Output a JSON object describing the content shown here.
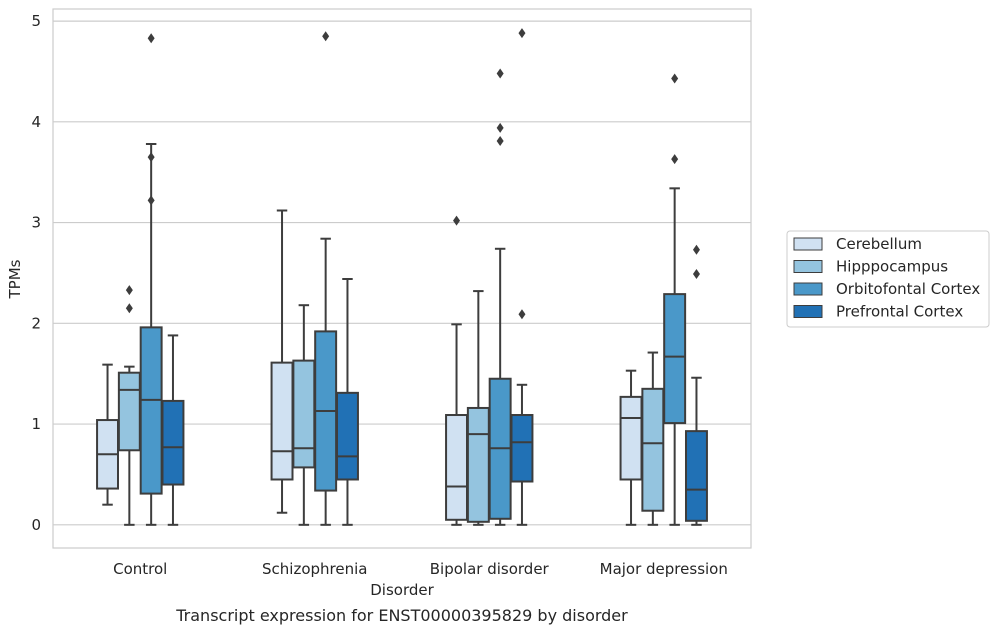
{
  "chart_data": {
    "type": "box",
    "title": "",
    "caption": "Transcript expression for ENST00000395829 by disorder",
    "xlabel": "Disorder",
    "ylabel": "TPMs",
    "ylim": [
      -0.23,
      5.12
    ],
    "yticks": [
      "0",
      "1",
      "2",
      "3",
      "4",
      "5"
    ],
    "ytick_values": [
      0,
      1,
      2,
      3,
      4,
      5
    ],
    "grid": "horizontal",
    "legend_placement": "right",
    "categories": [
      "Control",
      "Schizophrenia",
      "Bipolar disorder",
      "Major depression"
    ],
    "series": [
      {
        "name": "Cerebellum",
        "color": "#d0e1f2",
        "boxes": [
          {
            "whislo": 0.2,
            "q1": 0.36,
            "med": 0.7,
            "q3": 1.04,
            "whishi": 1.59,
            "fliers": []
          },
          {
            "whislo": 0.12,
            "q1": 0.45,
            "med": 0.73,
            "q3": 1.61,
            "whishi": 3.12,
            "fliers": []
          },
          {
            "whislo": 0.0,
            "q1": 0.05,
            "med": 0.38,
            "q3": 1.09,
            "whishi": 1.99,
            "fliers": [
              3.02
            ]
          },
          {
            "whislo": 0.0,
            "q1": 0.45,
            "med": 1.06,
            "q3": 1.27,
            "whishi": 1.53,
            "fliers": []
          }
        ]
      },
      {
        "name": "Hipppocampus",
        "color": "#94c4df",
        "boxes": [
          {
            "whislo": 0.0,
            "q1": 0.74,
            "med": 1.34,
            "q3": 1.51,
            "whishi": 1.57,
            "fliers": [
              2.15,
              2.33
            ]
          },
          {
            "whislo": 0.0,
            "q1": 0.57,
            "med": 0.76,
            "q3": 1.63,
            "whishi": 2.18,
            "fliers": []
          },
          {
            "whislo": 0.0,
            "q1": 0.03,
            "med": 0.9,
            "q3": 1.16,
            "whishi": 2.32,
            "fliers": []
          },
          {
            "whislo": 0.0,
            "q1": 0.14,
            "med": 0.81,
            "q3": 1.35,
            "whishi": 1.71,
            "fliers": []
          }
        ]
      },
      {
        "name": "Orbitofontal Cortex",
        "color": "#4a98c9",
        "boxes": [
          {
            "whislo": 0.0,
            "q1": 0.31,
            "med": 1.24,
            "q3": 1.96,
            "whishi": 3.78,
            "fliers": [
              3.22,
              3.65,
              4.83
            ]
          },
          {
            "whislo": 0.0,
            "q1": 0.34,
            "med": 1.13,
            "q3": 1.92,
            "whishi": 2.84,
            "fliers": [
              4.85
            ]
          },
          {
            "whislo": 0.0,
            "q1": 0.06,
            "med": 0.76,
            "q3": 1.45,
            "whishi": 2.74,
            "fliers": [
              3.81,
              3.94,
              4.48
            ]
          },
          {
            "whislo": 0.0,
            "q1": 1.01,
            "med": 1.67,
            "q3": 2.29,
            "whishi": 3.34,
            "fliers": [
              3.63,
              4.43
            ]
          }
        ]
      },
      {
        "name": "Prefrontal Cortex",
        "color": "#2171b5",
        "boxes": [
          {
            "whislo": 0.0,
            "q1": 0.4,
            "med": 0.77,
            "q3": 1.23,
            "whishi": 1.88,
            "fliers": []
          },
          {
            "whislo": 0.0,
            "q1": 0.45,
            "med": 0.68,
            "q3": 1.31,
            "whishi": 2.44,
            "fliers": []
          },
          {
            "whislo": 0.0,
            "q1": 0.43,
            "med": 0.82,
            "q3": 1.09,
            "whishi": 1.39,
            "fliers": [
              2.09,
              4.88
            ]
          },
          {
            "whislo": 0.0,
            "q1": 0.04,
            "med": 0.35,
            "q3": 0.93,
            "whishi": 1.46,
            "fliers": [
              2.49,
              2.73
            ]
          }
        ]
      }
    ]
  }
}
